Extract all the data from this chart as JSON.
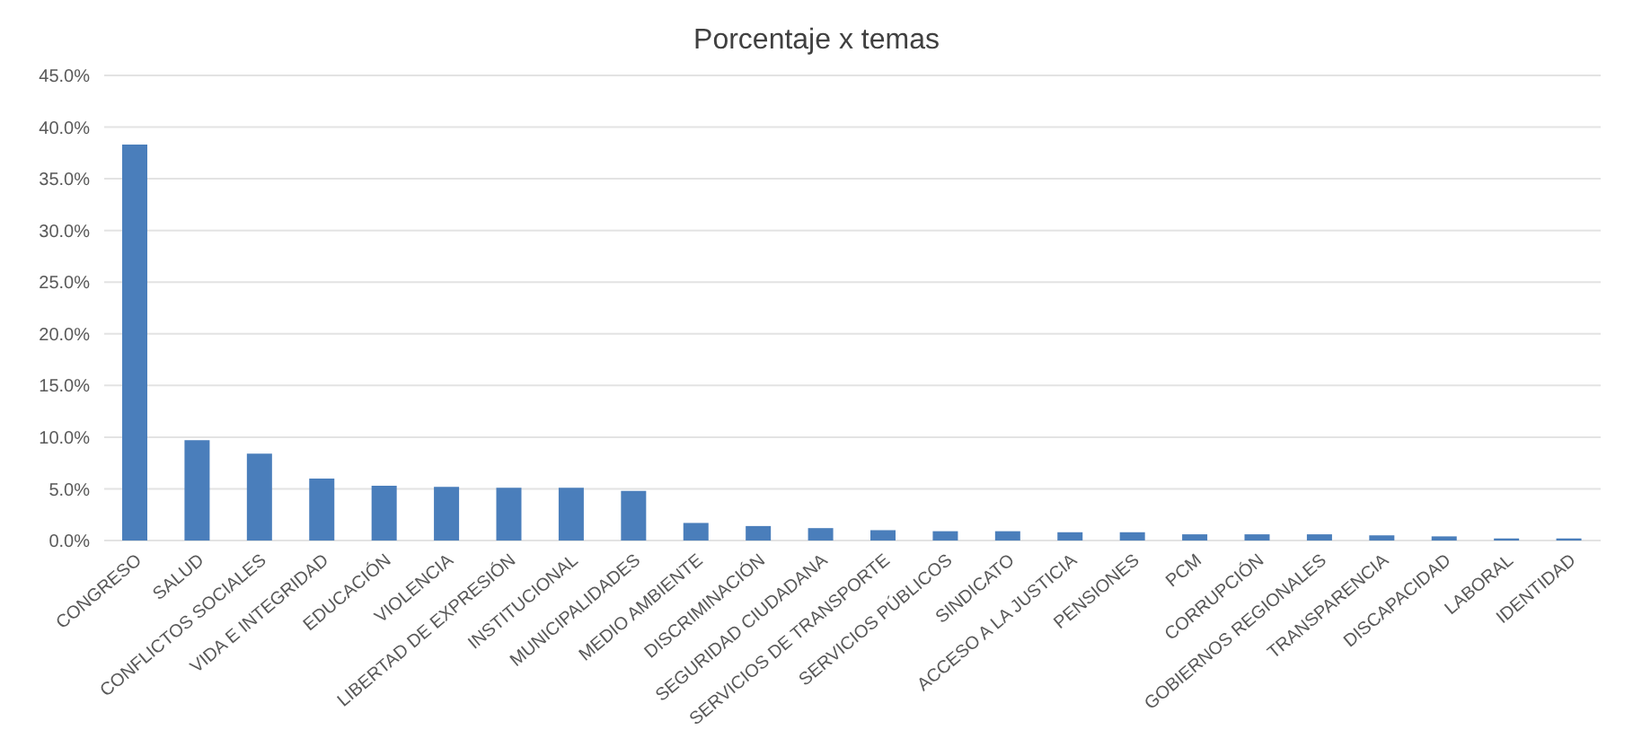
{
  "chart_data": {
    "type": "bar",
    "title": "Porcentaje x temas",
    "categories": [
      "CONGRESO",
      "SALUD",
      "CONFLICTOS SOCIALES",
      "VIDA E INTEGRIDAD",
      "EDUCACIÓN",
      "VIOLENCIA",
      "LIBERTAD DE EXPRESIÓN",
      "INSTITUCIONAL",
      "MUNICIPALIDADES",
      "MEDIO AMBIENTE",
      "DISCRIMINACIÓN",
      "SEGURIDAD CIUDADANA",
      "SERVICIOS DE TRANSPORTE",
      "SERVICIOS PÚBLICOS",
      "SINDICATO",
      "ACCESO A LA JUSTICIA",
      "PENSIONES",
      "PCM",
      "CORRUPCIÓN",
      "GOBIERNOS REGIONALES",
      "TRANSPARENCIA",
      "DISCAPACIDAD",
      "LABORAL",
      "IDENTIDAD"
    ],
    "values": [
      38.3,
      9.7,
      8.4,
      6.0,
      5.3,
      5.2,
      5.1,
      5.1,
      4.8,
      1.7,
      1.4,
      1.2,
      1.0,
      0.9,
      0.9,
      0.8,
      0.8,
      0.6,
      0.6,
      0.6,
      0.5,
      0.4,
      0.2,
      0.2
    ],
    "color": "#4a7ebb",
    "ylim": [
      0,
      45
    ],
    "yticks": [
      {
        "value": 0,
        "label": "0.0%"
      },
      {
        "value": 5,
        "label": "5.0%"
      },
      {
        "value": 10,
        "label": "10.0%"
      },
      {
        "value": 15,
        "label": "15.0%"
      },
      {
        "value": 20,
        "label": "20.0%"
      },
      {
        "value": 25,
        "label": "25.0%"
      },
      {
        "value": 30,
        "label": "30.0%"
      },
      {
        "value": 35,
        "label": "35.0%"
      },
      {
        "value": 40,
        "label": "40.0%"
      },
      {
        "value": 45,
        "label": "45.0%"
      }
    ],
    "grid": "y"
  }
}
